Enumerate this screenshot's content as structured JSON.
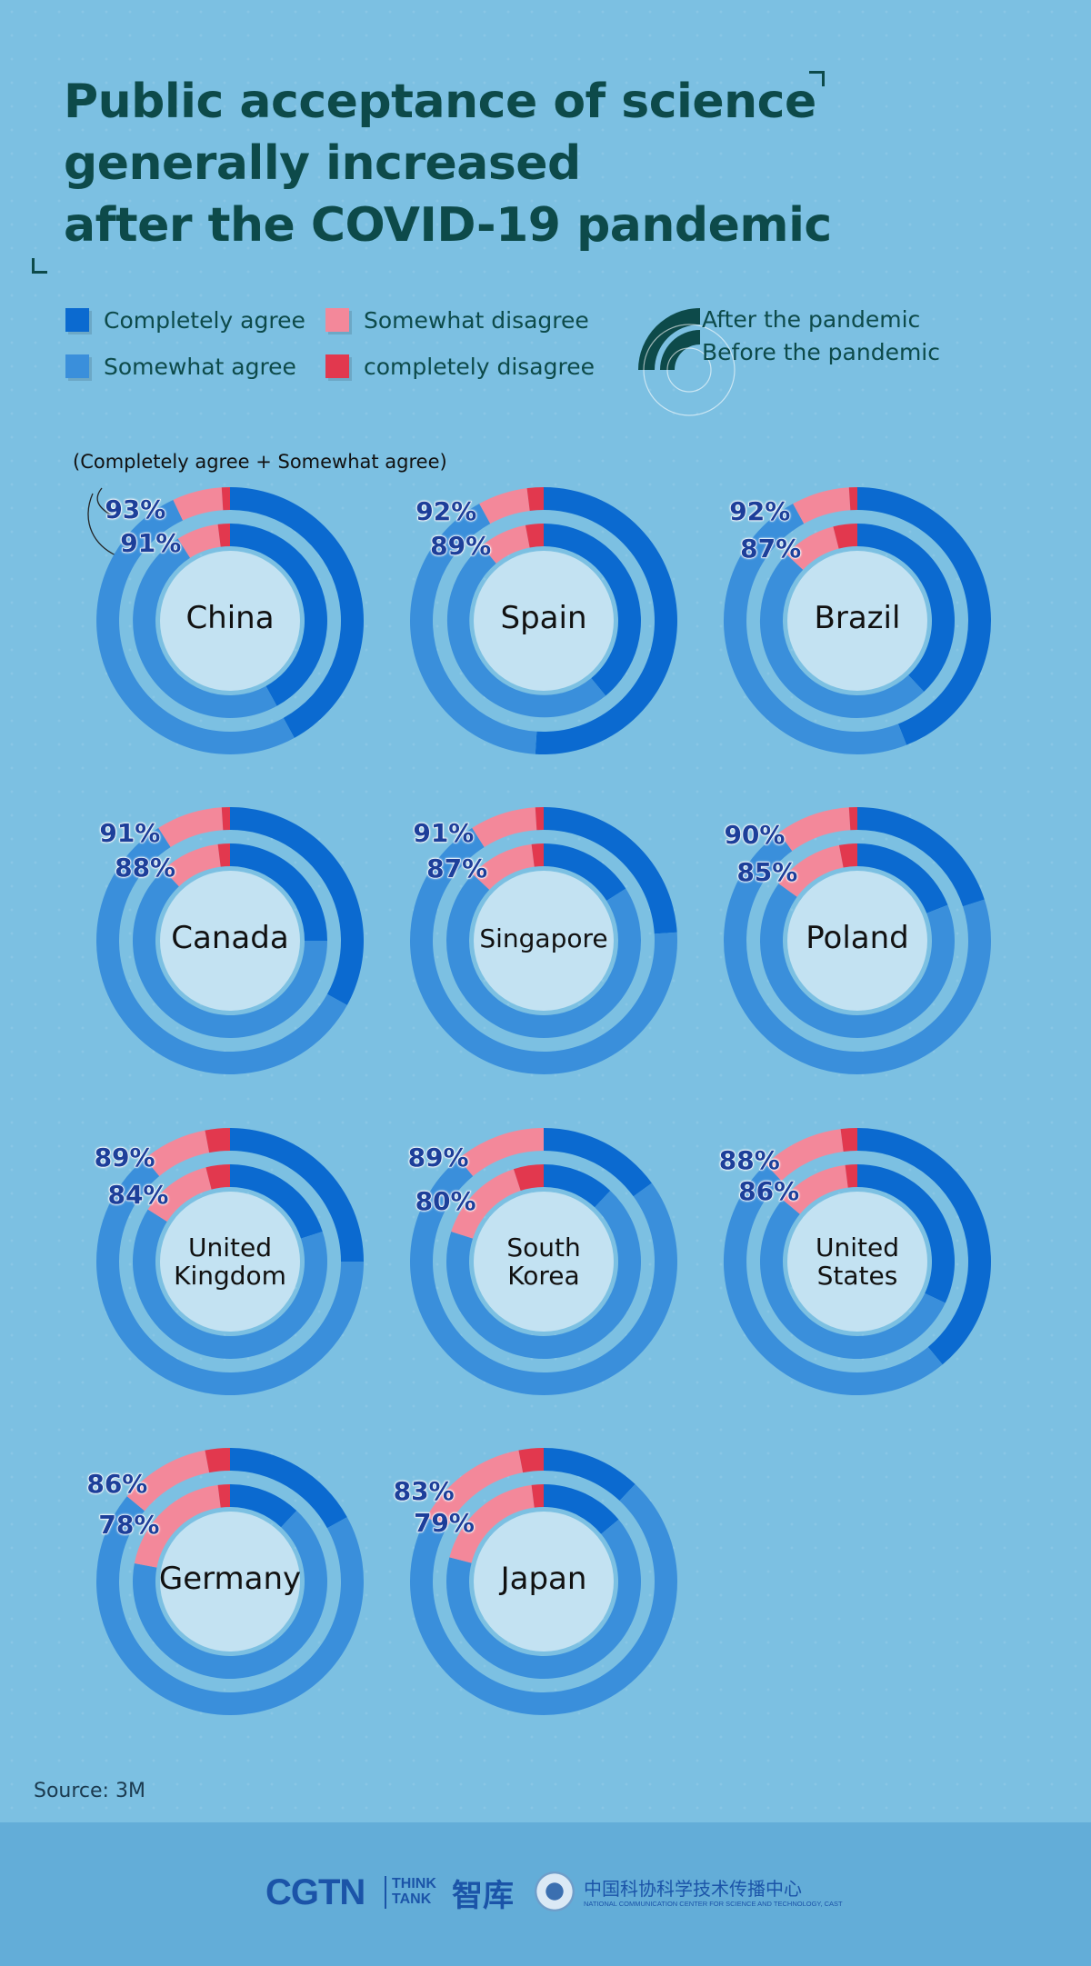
{
  "title_lines": [
    "Public acceptance of science",
    "generally increased",
    "after the COVID-19 pandemic"
  ],
  "colors": {
    "completely_agree": "#0b6ad0",
    "somewhat_agree": "#3a8fdb",
    "somewhat_disagree": "#f3889a",
    "completely_disagree": "#e2384e",
    "center": "#c3e2f2",
    "ring_legend": "#0d4a4a"
  },
  "legend": {
    "categories": [
      {
        "label": "Completely agree",
        "color": "#0b6ad0"
      },
      {
        "label": "Somewhat agree",
        "color": "#3a8fdb"
      },
      {
        "label": "Somewhat disagree",
        "color": "#f3889a"
      },
      {
        "label": "completely disagree",
        "color": "#e2384e"
      }
    ],
    "rings": {
      "outer": "After the pandemic",
      "inner": "Before the pandemic"
    }
  },
  "note": "(Completely agree + Somewhat agree)",
  "chart_data": {
    "type": "donut",
    "series": [
      {
        "name": "After the pandemic",
        "ring": "outer"
      },
      {
        "name": "Before the pandemic",
        "ring": "inner"
      }
    ],
    "segments": [
      "Completely agree",
      "Somewhat agree",
      "Somewhat disagree",
      "completely disagree"
    ],
    "countries": [
      {
        "name": "China",
        "after": {
          "agree_label": "93%",
          "shares": [
            42,
            51,
            6,
            1
          ]
        },
        "before": {
          "agree_label": "91%",
          "shares": [
            42,
            49,
            7,
            2
          ]
        }
      },
      {
        "name": "Spain",
        "after": {
          "agree_label": "92%",
          "shares": [
            51,
            41,
            6,
            2
          ]
        },
        "before": {
          "agree_label": "89%",
          "shares": [
            39,
            50,
            8,
            3
          ]
        }
      },
      {
        "name": "Brazil",
        "after": {
          "agree_label": "92%",
          "shares": [
            44,
            48,
            7,
            1
          ]
        },
        "before": {
          "agree_label": "87%",
          "shares": [
            38,
            49,
            9,
            4
          ]
        }
      },
      {
        "name": "Canada",
        "after": {
          "agree_label": "91%",
          "shares": [
            33,
            58,
            8,
            1
          ]
        },
        "before": {
          "agree_label": "88%",
          "shares": [
            25,
            63,
            10,
            2
          ]
        }
      },
      {
        "name": "Singapore",
        "after": {
          "agree_label": "91%",
          "shares": [
            24,
            67,
            8,
            1
          ]
        },
        "before": {
          "agree_label": "87%",
          "shares": [
            16,
            71,
            11,
            2
          ]
        }
      },
      {
        "name": "Poland",
        "after": {
          "agree_label": "90%",
          "shares": [
            20,
            70,
            9,
            1
          ]
        },
        "before": {
          "agree_label": "85%",
          "shares": [
            19,
            66,
            12,
            3
          ]
        }
      },
      {
        "name": "United Kingdom",
        "after": {
          "agree_label": "89%",
          "shares": [
            25,
            64,
            8,
            3
          ]
        },
        "before": {
          "agree_label": "84%",
          "shares": [
            20,
            64,
            12,
            4
          ]
        }
      },
      {
        "name": "South Korea",
        "after": {
          "agree_label": "89%",
          "shares": [
            15,
            74,
            11,
            0
          ]
        },
        "before": {
          "agree_label": "80%",
          "shares": [
            12,
            68,
            15,
            5
          ]
        }
      },
      {
        "name": "United States",
        "after": {
          "agree_label": "88%",
          "shares": [
            39,
            49,
            10,
            2
          ]
        },
        "before": {
          "agree_label": "86%",
          "shares": [
            32,
            54,
            12,
            2
          ]
        }
      },
      {
        "name": "Germany",
        "after": {
          "agree_label": "86%",
          "shares": [
            17,
            69,
            11,
            3
          ]
        },
        "before": {
          "agree_label": "78%",
          "shares": [
            12,
            66,
            20,
            2
          ]
        }
      },
      {
        "name": "Japan",
        "after": {
          "agree_label": "83%",
          "shares": [
            12,
            71,
            14,
            3
          ]
        },
        "before": {
          "agree_label": "79%",
          "shares": [
            14,
            65,
            19,
            2
          ]
        }
      }
    ]
  },
  "source": "Source: 3M",
  "footer": {
    "cgtn": "CGTN",
    "think_tank_lines": [
      "THINK",
      "TANK"
    ],
    "think_tank_cn": "智库",
    "partner_cn": "中国科协科学技术传播中心",
    "partner_en": "NATIONAL COMMUNICATION CENTER FOR SCIENCE AND TECHNOLOGY, CAST"
  }
}
